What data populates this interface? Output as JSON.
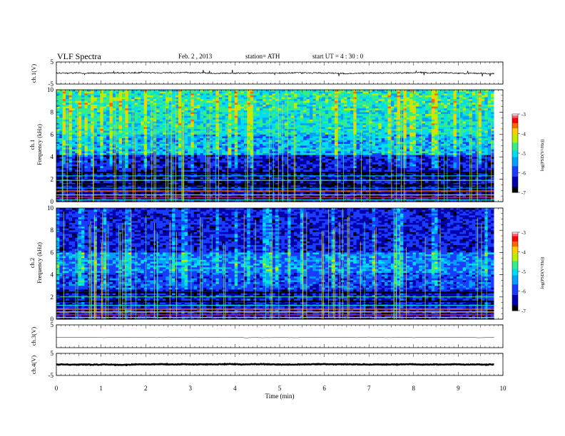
{
  "header": {
    "title": "VLF Spectra",
    "date": "Feb. 2 , 2013",
    "station": "station= ATH",
    "start": "start UT = 4 : 30 : 0"
  },
  "chart_data": [
    {
      "type": "line",
      "name": "ch1-waveform",
      "ylabel": "ch.1(V)",
      "ylim": [
        -5,
        5
      ],
      "yticks": [
        "5",
        "-5"
      ],
      "xlim": [
        0,
        10
      ],
      "baseline": 0,
      "noise_amplitude": 0.6
    },
    {
      "type": "heatmap",
      "name": "ch1-spectrogram",
      "ylabel_top": "ch.1",
      "ylabel": "Frequency (kHz)",
      "ylim": [
        0,
        10
      ],
      "yticks": [
        "0",
        "2",
        "4",
        "6",
        "8",
        "10"
      ],
      "xlim": [
        0,
        9.8
      ],
      "colorbar": {
        "label": "log(PSD(V²/Hz))",
        "range": [
          -7,
          -3
        ],
        "ticks": [
          "-3",
          "-4",
          "-5",
          "-6",
          "-7"
        ]
      }
    },
    {
      "type": "heatmap",
      "name": "ch2-spectrogram",
      "ylabel_top": "ch.2",
      "ylabel": "Frequency (kHz)",
      "ylim": [
        0,
        10
      ],
      "yticks": [
        "0",
        "2",
        "4",
        "6",
        "8",
        "10"
      ],
      "xlim": [
        0,
        9.8
      ],
      "colorbar": {
        "label": "log(PSD(V²/Hz))",
        "range": [
          -7,
          -3
        ],
        "ticks": [
          "-3",
          "-4",
          "-5",
          "-6",
          "-7"
        ]
      }
    },
    {
      "type": "line",
      "name": "ch3-waveform",
      "ylabel": "ch.3(V)",
      "ylim": [
        -5,
        5
      ],
      "yticks": [
        "5"
      ],
      "xlim": [
        0,
        10
      ],
      "baseline": -0.5,
      "noise_amplitude": 0.05
    },
    {
      "type": "line",
      "name": "ch4-waveform",
      "ylabel": "ch.4(V)",
      "ylim": [
        -5,
        5
      ],
      "yticks": [
        "5",
        "-5"
      ],
      "xlim": [
        0,
        10
      ],
      "baseline": 0,
      "noise_amplitude": 0.25
    }
  ],
  "xaxis": {
    "label": "Time (min)",
    "ticks": [
      "0",
      "1",
      "2",
      "3",
      "4",
      "5",
      "6",
      "7",
      "8",
      "9",
      "10"
    ],
    "range": [
      0,
      10
    ]
  },
  "colors": {
    "colormap": [
      "#000000",
      "#0000aa",
      "#1a3cff",
      "#00a0ff",
      "#00ddee",
      "#33ee88",
      "#bbee00",
      "#ffcc00",
      "#ff6600",
      "#ff0000",
      "#ff6677",
      "#ffffff"
    ]
  }
}
